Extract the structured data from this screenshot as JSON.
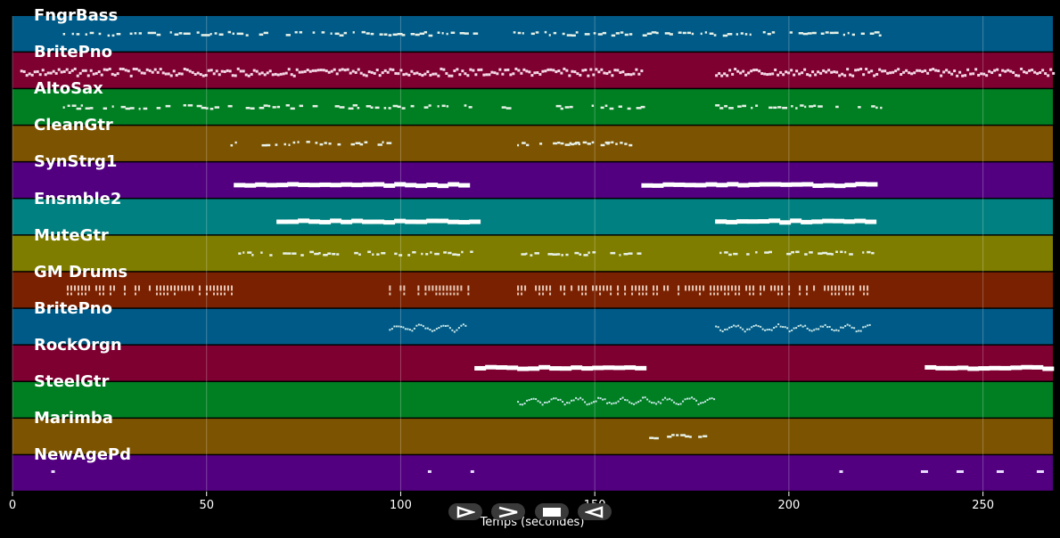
{
  "timeline": {
    "x_axis": {
      "label": "Temps (secondes)",
      "range": [
        0,
        268
      ],
      "ticks": [
        0,
        50,
        100,
        150,
        200,
        250
      ]
    },
    "grid": true,
    "tracks": [
      {
        "name": "FngrBass",
        "color": "#005a87",
        "style": "dots",
        "spans": [
          [
            13,
            119
          ],
          [
            129,
            224
          ]
        ]
      },
      {
        "name": "BritePno",
        "color": "#7d0030",
        "style": "dense",
        "spans": [
          [
            2,
            97
          ],
          [
            97,
            128
          ],
          [
            128,
            162
          ],
          [
            181,
            268
          ]
        ]
      },
      {
        "name": "AltoSax",
        "color": "#007f22",
        "style": "dots",
        "spans": [
          [
            13,
            119
          ],
          [
            126,
            129
          ],
          [
            140,
            162
          ],
          [
            181,
            224
          ]
        ]
      },
      {
        "name": "CleanGtr",
        "color": "#7c5300",
        "style": "dots",
        "spans": [
          [
            55,
            97
          ],
          [
            130,
            145
          ],
          [
            140,
            153
          ],
          [
            153,
            159
          ]
        ]
      },
      {
        "name": "SynStrg1",
        "color": "#520080",
        "style": "bar",
        "spans": [
          [
            57,
            117
          ],
          [
            162,
            221
          ]
        ]
      },
      {
        "name": "Ensmble2",
        "color": "#008080",
        "style": "bar",
        "spans": [
          [
            68,
            118
          ],
          [
            181,
            222
          ]
        ]
      },
      {
        "name": "MuteGtr",
        "color": "#7e7d00",
        "style": "dots",
        "spans": [
          [
            57,
            118
          ],
          [
            131,
            162
          ],
          [
            181,
            222
          ]
        ]
      },
      {
        "name": "GM Drums",
        "color": "#792100",
        "style": "drums",
        "spans": [
          [
            14,
            57
          ],
          [
            97,
            118
          ],
          [
            130,
            222
          ]
        ]
      },
      {
        "name": "BritePno",
        "color": "#005a87",
        "style": "wave",
        "spans": [
          [
            97,
            117
          ],
          [
            181,
            221
          ]
        ]
      },
      {
        "name": "RockOrgn",
        "color": "#7d0030",
        "style": "bar",
        "spans": [
          [
            119,
            162
          ],
          [
            235,
            268
          ]
        ]
      },
      {
        "name": "SteelGtr",
        "color": "#007f22",
        "style": "wave",
        "spans": [
          [
            130,
            181
          ]
        ]
      },
      {
        "name": "Marimba",
        "color": "#7c5300",
        "style": "dots",
        "spans": [
          [
            164,
            178
          ]
        ]
      },
      {
        "name": "NewAgePd",
        "color": "#520080",
        "style": "sparse",
        "spans": [
          [
            10,
            13
          ],
          [
            107,
            109
          ],
          [
            118,
            119
          ],
          [
            213,
            214
          ],
          [
            234,
            268
          ]
        ]
      }
    ]
  },
  "controls": [
    {
      "name": "play-button",
      "icon": "play-icon"
    },
    {
      "name": "forward-button",
      "icon": "forward-icon"
    },
    {
      "name": "stop-button",
      "icon": "stop-icon"
    },
    {
      "name": "back-button",
      "icon": "back-icon"
    }
  ]
}
